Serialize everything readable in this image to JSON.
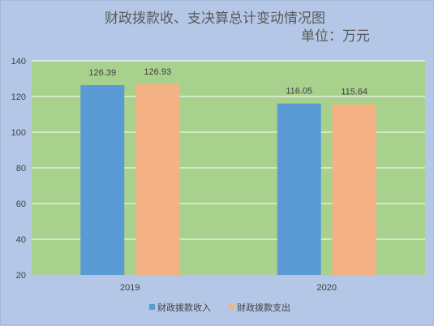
{
  "colors": {
    "page_background": "#b4c7e7",
    "plot_background": "#a9d18e",
    "gridline": "#ffffff",
    "axis_line": "#bfbfbf",
    "text": "#404040",
    "title_text": "#595959"
  },
  "chart_data": {
    "type": "bar",
    "title": "财政拨款收、支决算总计变动情况图",
    "subtitle": "单位：万元",
    "categories": [
      "2019",
      "2020"
    ],
    "series": [
      {
        "name": "财政拨款收入",
        "color": "#5b9bd5",
        "values": [
          126.39,
          116.05
        ]
      },
      {
        "name": "财政拨款支出",
        "color": "#f4b183",
        "values": [
          126.93,
          115.64
        ]
      }
    ],
    "ylim": [
      20,
      140
    ],
    "yticks": [
      20,
      40,
      60,
      80,
      100,
      120,
      140
    ],
    "grid": true,
    "legend": "bottom",
    "data_labels": true
  }
}
